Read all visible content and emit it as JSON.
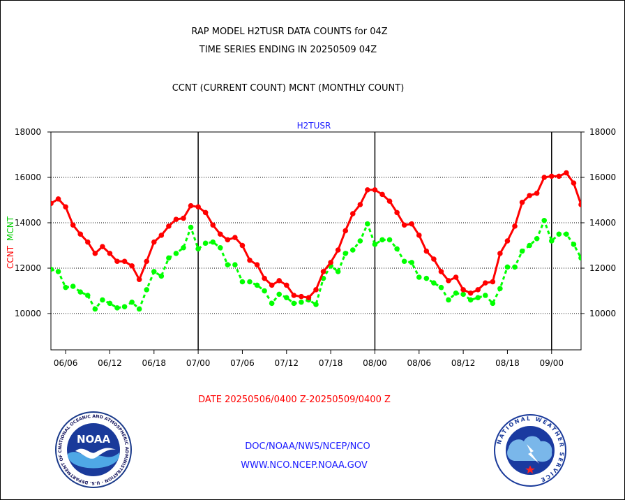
{
  "header": {
    "line1": "RAP MODEL H2TUSR DATA COUNTS for 04Z",
    "line2": "TIME SERIES ENDING IN 20250509 04Z",
    "line3": "CCNT (CURRENT COUNT) MCNT (MONTHLY COUNT)"
  },
  "chart_data": {
    "type": "line",
    "title": "H2TUSR",
    "ylabel_left": "CCNT",
    "ylabel_left_secondary": "MCNT",
    "ylim": [
      8400,
      18000
    ],
    "y_ticks": [
      10000,
      12000,
      14000,
      16000,
      18000
    ],
    "y_tick_labels": [
      "10000",
      "12000",
      "14000",
      "16000",
      "18000"
    ],
    "x_tick_labels": [
      "06/06",
      "06/12",
      "06/18",
      "07/00",
      "07/06",
      "07/12",
      "07/18",
      "08/00",
      "08/06",
      "08/12",
      "08/18",
      "09/00"
    ],
    "x_range_hours": [
      4,
      76
    ],
    "x_tick_hours": [
      6,
      12,
      18,
      24,
      30,
      36,
      42,
      48,
      54,
      60,
      66,
      72
    ],
    "day_boundaries_hours": [
      24,
      48,
      72
    ],
    "grid": true,
    "series": [
      {
        "name": "CCNT",
        "color": "#ff0000",
        "style": "solid",
        "x": [
          4,
          5,
          6,
          7,
          8,
          9,
          10,
          11,
          12,
          13,
          14,
          15,
          16,
          17,
          18,
          19,
          20,
          21,
          22,
          23,
          24,
          25,
          26,
          27,
          28,
          29,
          30,
          31,
          32,
          33,
          34,
          35,
          36,
          37,
          38,
          39,
          40,
          41,
          42,
          43,
          44,
          45,
          46,
          47,
          48,
          49,
          50,
          51,
          52,
          53,
          54,
          55,
          56,
          57,
          58,
          59,
          60,
          61,
          62,
          63,
          64,
          65,
          66,
          67,
          68,
          69,
          70,
          71,
          72,
          73,
          74,
          75,
          76
        ],
        "values": [
          14850,
          15050,
          14700,
          13900,
          13500,
          13150,
          12650,
          12950,
          12650,
          12300,
          12300,
          12100,
          11500,
          12300,
          13150,
          13450,
          13850,
          14150,
          14200,
          14750,
          14700,
          14450,
          13900,
          13500,
          13250,
          13350,
          13000,
          12350,
          12150,
          11550,
          11250,
          11450,
          11250,
          10800,
          10750,
          10700,
          11050,
          11850,
          12250,
          12800,
          13650,
          14400,
          14800,
          15450,
          15450,
          15250,
          14950,
          14450,
          13900,
          13950,
          13450,
          12750,
          12400,
          11850,
          11450,
          11600,
          11050,
          10900,
          11050,
          11350,
          11400,
          12650,
          13200,
          13850,
          14900,
          15200,
          15300,
          16000,
          16050,
          16050,
          16200,
          15750,
          14800
        ]
      },
      {
        "name": "MCNT",
        "color": "#00ff00",
        "style": "dashed",
        "x": [
          4,
          5,
          6,
          7,
          8,
          9,
          10,
          11,
          12,
          13,
          14,
          15,
          16,
          17,
          18,
          19,
          20,
          21,
          22,
          23,
          24,
          25,
          26,
          27,
          28,
          29,
          30,
          31,
          32,
          33,
          34,
          35,
          36,
          37,
          38,
          39,
          40,
          41,
          42,
          43,
          44,
          45,
          46,
          47,
          48,
          49,
          50,
          51,
          52,
          53,
          54,
          55,
          56,
          57,
          58,
          59,
          60,
          61,
          62,
          63,
          64,
          65,
          66,
          67,
          68,
          69,
          70,
          71,
          72,
          73,
          74,
          75,
          76
        ],
        "values": [
          11950,
          11850,
          11150,
          11200,
          10950,
          10800,
          10200,
          10600,
          10450,
          10250,
          10300,
          10500,
          10200,
          11050,
          11850,
          11650,
          12450,
          12650,
          12900,
          13800,
          12850,
          13100,
          13150,
          12900,
          12150,
          12150,
          11400,
          11400,
          11250,
          11000,
          10450,
          10850,
          10700,
          10450,
          10500,
          10600,
          10400,
          11550,
          12100,
          11850,
          12650,
          12800,
          13200,
          13950,
          13050,
          13250,
          13250,
          12850,
          12300,
          12250,
          11600,
          11550,
          11350,
          11150,
          10600,
          10900,
          10850,
          10600,
          10700,
          10800,
          10450,
          11100,
          12050,
          12050,
          12750,
          13000,
          13300,
          14100,
          13200,
          13500,
          13500,
          13050,
          12450
        ]
      }
    ]
  },
  "footer": {
    "date_range": "DATE 20250506/0400 Z-20250509/0400 Z",
    "org": "DOC/NOAA/NWS/NCEP/NCO",
    "url": "WWW.NCO.NCEP.NOAA.GOV",
    "noaa_logo_text": "NOAA",
    "noaa_ring_text": "NATIONAL OCEANIC AND ATMOSPHERIC ADMINISTRATION · U.S. DEPARTMENT OF COMMERCE",
    "nws_ring_text": "NATIONAL WEATHER SERVICE"
  }
}
